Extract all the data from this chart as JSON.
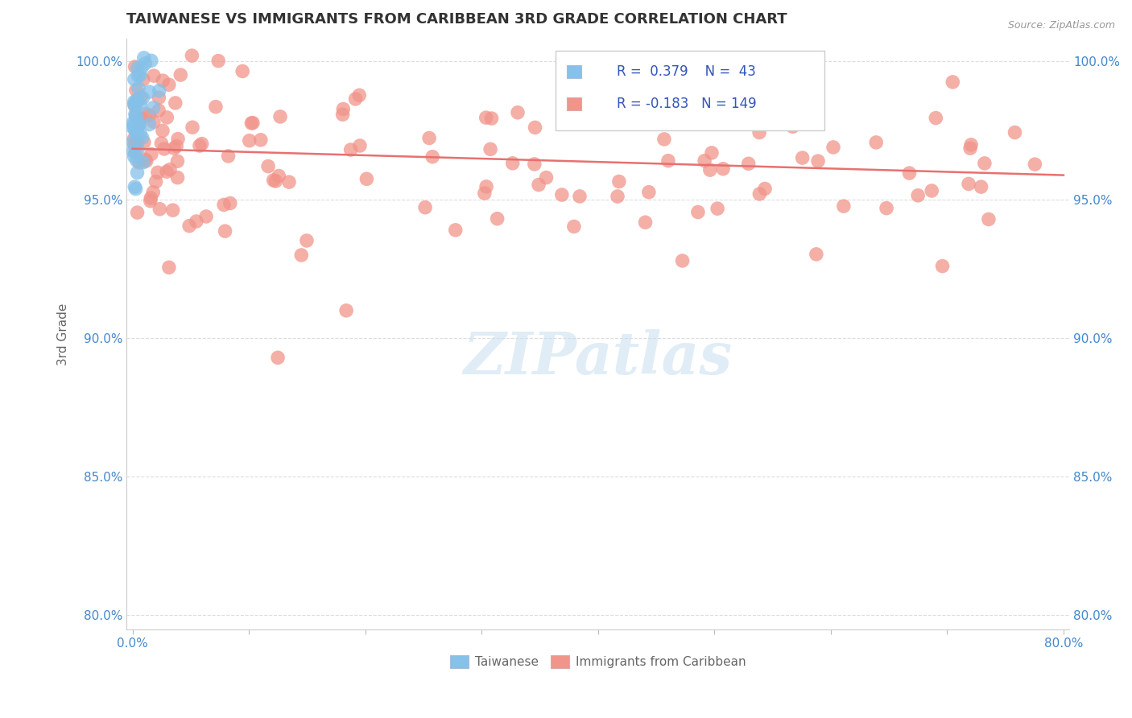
{
  "title": "TAIWANESE VS IMMIGRANTS FROM CARIBBEAN 3RD GRADE CORRELATION CHART",
  "source": "Source: ZipAtlas.com",
  "ylabel": "3rd Grade",
  "x_min": 0.0,
  "x_max": 0.8,
  "y_min": 0.795,
  "y_max": 1.008,
  "x_ticks": [
    0.0,
    0.1,
    0.2,
    0.3,
    0.4,
    0.5,
    0.6,
    0.7,
    0.8
  ],
  "x_tick_labels": [
    "0.0%",
    "",
    "",
    "",
    "",
    "",
    "",
    "",
    "80.0%"
  ],
  "y_ticks": [
    0.8,
    0.85,
    0.9,
    0.95,
    1.0
  ],
  "y_tick_labels": [
    "80.0%",
    "85.0%",
    "90.0%",
    "95.0%",
    "100.0%"
  ],
  "taiwanese_color": "#85c1e9",
  "taiwanese_edge": "#5b9bd5",
  "caribbean_color": "#f1948a",
  "caribbean_edge": "#e07070",
  "trend_color_caribbean": "#e87070",
  "watermark_text": "ZIPatlas",
  "R_taiwanese": 0.379,
  "N_taiwanese": 43,
  "R_caribbean": -0.183,
  "N_caribbean": 149,
  "background_color": "#ffffff",
  "grid_color": "#dddddd",
  "title_color": "#333333",
  "axis_label_color": "#666666",
  "tick_label_color": "#4488cc",
  "legend_text_color": "#3355bb"
}
